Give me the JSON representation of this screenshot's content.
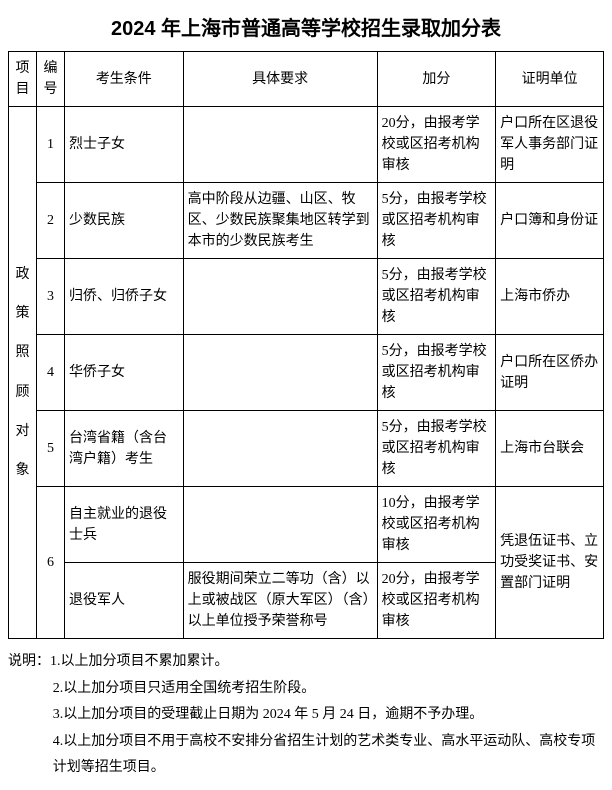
{
  "title": "2024 年上海市普通高等学校招生录取加分表",
  "headers": {
    "project": "项目",
    "num": "编号",
    "condition": "考生条件",
    "requirement": "具体要求",
    "bonus": "加分",
    "cert": "证明单位"
  },
  "category_label_chars": [
    "政",
    "策",
    "照",
    "顾",
    "对",
    "象"
  ],
  "rows": [
    {
      "num": "1",
      "condition": "烈士子女",
      "requirement": "",
      "bonus": "20分，由报考学校或区招考机构审核",
      "cert": "户口所在区退役军人事务部门证明"
    },
    {
      "num": "2",
      "condition": "少数民族",
      "requirement": "高中阶段从边疆、山区、牧区、少数民族聚集地区转学到本市的少数民族考生",
      "bonus": "5分，由报考学校或区招考机构审核",
      "cert": "户口簿和身份证"
    },
    {
      "num": "3",
      "condition": "归侨、归侨子女",
      "requirement": "",
      "bonus": "5分，由报考学校或区招考机构审核",
      "cert": "上海市侨办"
    },
    {
      "num": "4",
      "condition": "华侨子女",
      "requirement": "",
      "bonus": "5分，由报考学校或区招考机构审核",
      "cert": "户口所在区侨办证明"
    },
    {
      "num": "5",
      "condition": "台湾省籍（含台湾户籍）考生",
      "requirement": "",
      "bonus": "5分，由报考学校或区招考机构审核",
      "cert": "上海市台联会"
    },
    {
      "num": "6",
      "sub": [
        {
          "condition": "自主就业的退役士兵",
          "requirement": "",
          "bonus": "10分，由报考学校或区招考机构审核"
        },
        {
          "condition": "退役军人",
          "requirement": "服役期间荣立二等功（含）以上或被战区（原大军区）（含）以上单位授予荣誉称号",
          "bonus": "20分，由报考学校或区招考机构审核"
        }
      ],
      "cert": "凭退伍证书、立功受奖证书、安置部门证明"
    }
  ],
  "notes_label": "说明：",
  "notes": [
    "1.以上加分项目不累加累计。",
    "2.以上加分项目只适用全国统考招生阶段。",
    "3.以上加分项目的受理截止日期为 2024 年 5 月 24 日，逾期不予办理。",
    "4.以上加分项目不用于高校不安排分省招生计划的艺术类专业、高水平运动队、高校专项计划等招生项目。"
  ]
}
